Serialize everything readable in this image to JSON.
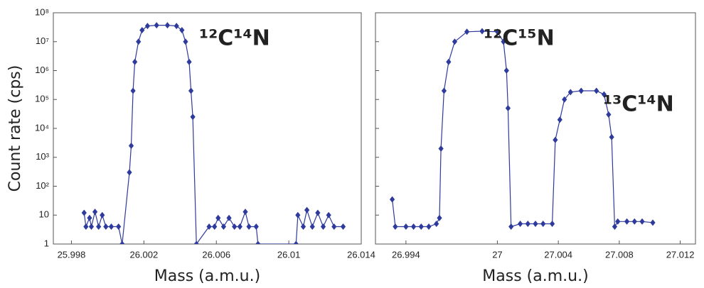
{
  "chart_data": [
    {
      "type": "line",
      "xlabel": "Mass (a.m.u.)",
      "ylabel": "Count rate (cps)",
      "log_y": true,
      "marker": "diamond",
      "annotation": "¹²C¹⁴N",
      "xlim": [
        25.997,
        26.014
      ],
      "xticks": [
        25.998,
        26.002,
        26.006,
        26.01,
        26.014
      ],
      "ylim": [
        1,
        100000000
      ],
      "yticks": [
        1,
        10,
        {
          "value": 100,
          "label": "10²"
        },
        {
          "value": 1000,
          "label": "10³"
        },
        {
          "value": 10000,
          "label": "10⁴"
        },
        {
          "value": 100000,
          "label": "10⁵"
        },
        {
          "value": 1000000,
          "label": "10⁶"
        },
        {
          "value": 10000000,
          "label": "10⁷"
        },
        {
          "value": 100000000,
          "label": "10⁸"
        }
      ],
      "show_ytick_labels": true,
      "series": [
        {
          "color": "#2e3a9c",
          "x": [
            25.9987,
            25.9988,
            25.999,
            25.9991,
            25.9993,
            25.9995,
            25.9997,
            25.9999,
            26.0002,
            26.0006,
            26.0008,
            26.0012,
            26.0013,
            26.0014,
            26.0015,
            26.0017,
            26.0019,
            26.0022,
            26.0027,
            26.0033,
            26.0038,
            26.0041,
            26.0043,
            26.0045,
            26.0046,
            26.0047,
            26.0049,
            26.0056,
            26.0059,
            26.0061,
            26.0064,
            26.0067,
            26.007,
            26.0073,
            26.0076,
            26.0078,
            26.0082,
            26.0083,
            26.0104,
            26.0105,
            26.0108,
            26.011,
            26.0113,
            26.0116,
            26.0119,
            26.0122,
            26.0125,
            26.013
          ],
          "values": [
            12,
            4,
            8,
            4,
            13,
            4,
            10,
            4,
            4,
            4,
            1,
            300,
            2500,
            200000,
            2000000,
            10000000,
            25000000,
            35000000,
            37000000,
            37000000,
            35000000,
            25000000,
            10000000,
            2000000,
            200000,
            25000,
            1,
            4,
            4,
            8,
            4,
            8,
            4,
            4,
            13,
            4,
            4,
            1,
            1,
            10,
            4,
            15,
            4,
            12,
            4,
            10,
            4,
            4
          ]
        }
      ]
    },
    {
      "type": "line",
      "xlabel": "Mass (a.m.u.)",
      "log_y": true,
      "marker": "diamond",
      "annotation": "¹²C¹⁵N",
      "annotation2": "¹³C¹⁴N",
      "xlim": [
        26.992,
        27.013
      ],
      "xticks": [
        26.994,
        27.0,
        27.004,
        27.008,
        27.012
      ],
      "ylim": [
        1,
        100000000
      ],
      "yticks": [
        1,
        10,
        100,
        1000,
        10000,
        100000,
        1000000,
        10000000,
        100000000
      ],
      "show_ytick_labels": false,
      "series": [
        {
          "color": "#2e3a9c",
          "x": [
            26.9931,
            26.9933,
            26.994,
            26.9945,
            26.995,
            26.9955,
            26.996,
            26.9962,
            26.9963,
            26.9965,
            26.9968,
            26.9972,
            26.998,
            26.999,
            27.0,
            27.0004,
            27.0006,
            27.0007,
            27.0009,
            27.0015,
            27.002,
            27.0025,
            27.003,
            27.0036,
            27.0038,
            27.0041,
            27.0044,
            27.0048,
            27.0055,
            27.0065,
            27.007,
            27.0073,
            27.0075,
            27.0077,
            27.0079,
            27.0085,
            27.009,
            27.0095,
            27.0102
          ],
          "values": [
            35,
            4,
            4,
            4,
            4,
            4,
            5,
            8,
            2000,
            200000,
            2000000,
            10000000,
            22000000,
            23000000,
            22000000,
            10000000,
            1000000,
            50000,
            4,
            5,
            5,
            5,
            5,
            5,
            4000,
            20000,
            100000,
            180000,
            200000,
            200000,
            150000,
            30000,
            5000,
            4,
            6,
            6,
            6,
            6,
            5.5
          ]
        }
      ]
    }
  ]
}
